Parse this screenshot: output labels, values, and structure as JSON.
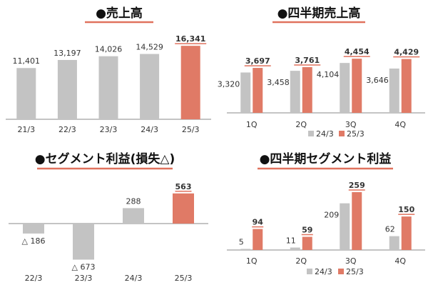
{
  "colors": {
    "prior": "#c3c3c3",
    "current": "#e07a66",
    "axis": "#8a8a8a",
    "text": "#333333",
    "title": "#111111",
    "underline": "#e0725e"
  },
  "chart_data": [
    {
      "type": "bar",
      "title": "●売上高",
      "categories": [
        "21/3",
        "22/3",
        "23/3",
        "24/3",
        "25/3"
      ],
      "values": [
        11401,
        13197,
        14026,
        14529,
        16341
      ],
      "value_labels": [
        "11,401",
        "13,197",
        "14,026",
        "14,529",
        "16,341"
      ],
      "highlight_index": 4,
      "ylim": [
        0,
        17000
      ],
      "grid": false
    },
    {
      "type": "bar",
      "title": "●四半期売上高",
      "categories": [
        "1Q",
        "2Q",
        "3Q",
        "4Q"
      ],
      "series": [
        {
          "name": "24/3",
          "values": [
            3320,
            3458,
            4104,
            3646
          ],
          "labels": [
            "3,320",
            "3,458",
            "4,104",
            "3,646"
          ]
        },
        {
          "name": "25/3",
          "values": [
            3697,
            3761,
            4454,
            4429
          ],
          "labels": [
            "3,697",
            "3,761",
            "4,454",
            "4,429"
          ]
        }
      ],
      "legend": "bottom",
      "ylim": [
        0,
        4700
      ],
      "grid": false
    },
    {
      "type": "bar",
      "title": "●セグメント利益(損失△)",
      "categories": [
        "22/3",
        "23/3",
        "24/3",
        "25/3"
      ],
      "values": [
        -186,
        -673,
        288,
        563
      ],
      "value_labels": [
        "△ 186",
        "△ 673",
        "288",
        "563"
      ],
      "highlight_index": 3,
      "ylim": [
        -700,
        600
      ],
      "grid": false
    },
    {
      "type": "bar",
      "title": "●四半期セグメント利益",
      "categories": [
        "1Q",
        "2Q",
        "3Q",
        "4Q"
      ],
      "series": [
        {
          "name": "24/3",
          "values": [
            5,
            11,
            209,
            62
          ],
          "labels": [
            "5",
            "11",
            "209",
            "62"
          ]
        },
        {
          "name": "25/3",
          "values": [
            94,
            59,
            259,
            150
          ],
          "labels": [
            "94",
            "59",
            "259",
            "150"
          ]
        }
      ],
      "legend": "bottom",
      "ylim": [
        0,
        275
      ],
      "grid": false
    }
  ]
}
